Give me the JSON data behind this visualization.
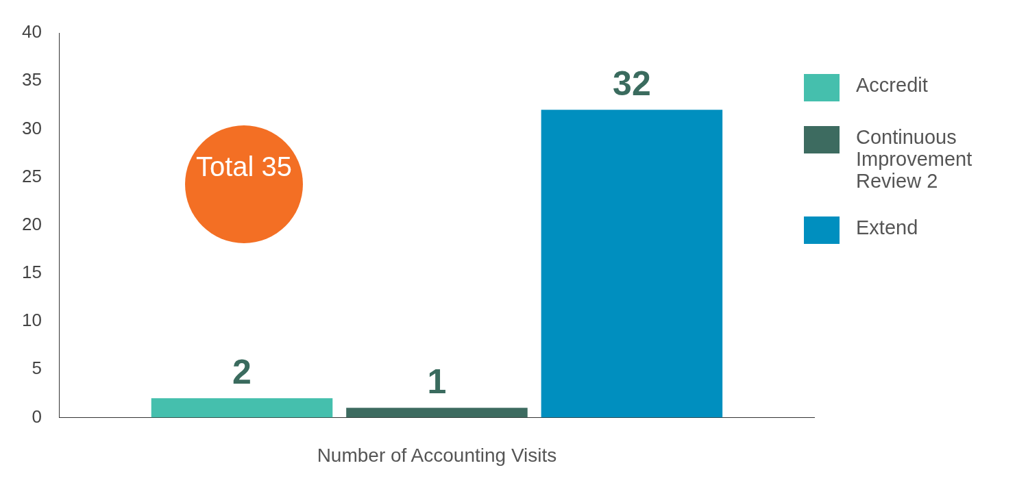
{
  "chart_data": {
    "type": "bar",
    "xlabel": "Number of Accounting Visits",
    "categories": [
      null
    ],
    "series": [
      {
        "name": "Accredit",
        "color": "#45bfad",
        "values": [
          2
        ]
      },
      {
        "name": "Continuous Improvement Review 2",
        "color": "#3d6b60",
        "values": [
          1
        ]
      },
      {
        "name": "Extend",
        "color": "#008fbf",
        "values": [
          32
        ]
      }
    ],
    "ylim": [
      0,
      40
    ],
    "yticks": [
      0,
      5,
      10,
      15,
      20,
      25,
      30,
      35,
      40
    ],
    "grid": false,
    "legend": "right",
    "data_labels": true,
    "annotations": [
      "Total 35"
    ]
  }
}
